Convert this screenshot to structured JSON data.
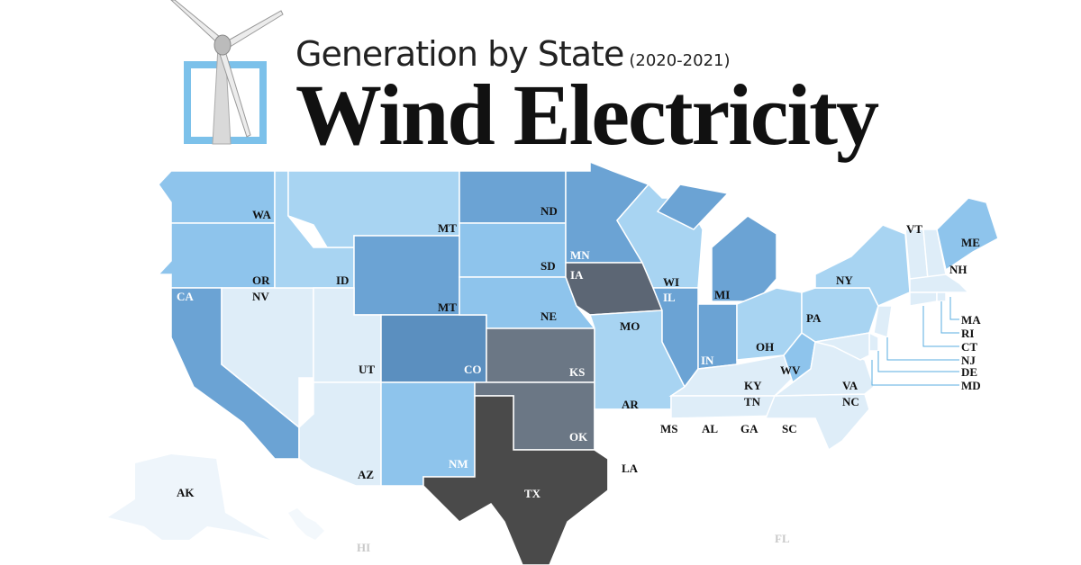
{
  "header": {
    "subtitle": "Generation by State",
    "years": "(2020-2021)",
    "title": "Wind Electricity"
  },
  "colors": {
    "lightest": "#ffffff",
    "very_light": "#deedf8",
    "light": "#a8d4f2",
    "medium": "#8ec4ec",
    "medium_dark": "#6ba3d4",
    "dark": "#5b8fbf",
    "gray": "#6b7785",
    "darkest": "#4a4a4a",
    "outline": "#a8d4f2",
    "brand": "#7cc1ea"
  },
  "states": {
    "WA": "WA",
    "OR": "OR",
    "CA": "CA",
    "NV": "NV",
    "ID": "ID",
    "MT1": "MT",
    "MT2": "MT",
    "UT": "UT",
    "AZ": "AZ",
    "CO": "CO",
    "NM": "NM",
    "ND": "ND",
    "SD": "SD",
    "NE": "NE",
    "KS": "KS",
    "OK": "OK",
    "TX": "TX",
    "MN": "MN",
    "IA": "IA",
    "MO": "MO",
    "AR": "AR",
    "LA": "LA",
    "WI": "WI",
    "IL": "IL",
    "MI": "MI",
    "IN": "IN",
    "OH": "OH",
    "KY": "KY",
    "TN": "TN",
    "MS": "MS",
    "AL": "AL",
    "GA": "GA",
    "FL": "FL",
    "SC": "SC",
    "NC": "NC",
    "VA": "VA",
    "WV": "WV",
    "PA": "PA",
    "NY": "NY",
    "VT": "VT",
    "NH": "NH",
    "ME": "ME",
    "MA": "MA",
    "RI": "RI",
    "CT": "CT",
    "NJ": "NJ",
    "DE": "DE",
    "MD": "MD",
    "AK": "AK",
    "HI": "HI"
  }
}
